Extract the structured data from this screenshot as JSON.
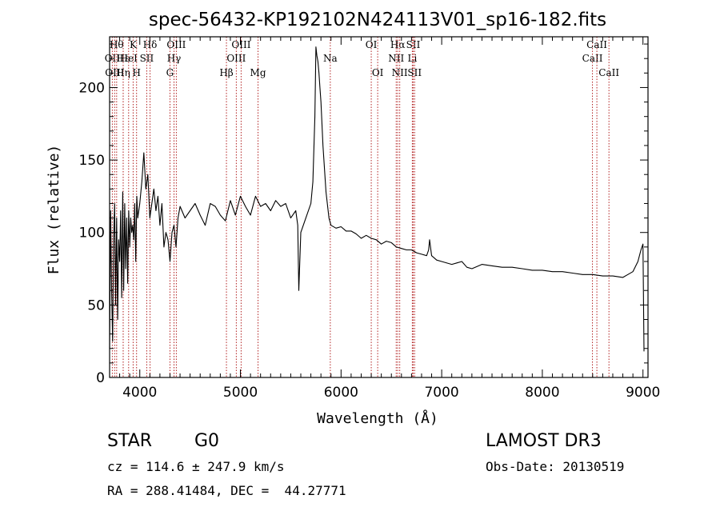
{
  "chart_data": {
    "type": "line",
    "title": "spec-56432-KP192102N424113V01_sp16-182.fits",
    "xlabel": "Wavelength (Å)",
    "ylabel": "Flux (relative)",
    "xlim": [
      3700,
      9050
    ],
    "ylim": [
      0,
      235
    ],
    "xticks": [
      4000,
      5000,
      6000,
      7000,
      8000,
      9000
    ],
    "yticks": [
      0,
      50,
      100,
      150,
      200
    ],
    "grid": false,
    "series": [
      {
        "name": "flux",
        "x": [
          3700,
          3710,
          3720,
          3730,
          3740,
          3750,
          3760,
          3770,
          3780,
          3790,
          3800,
          3810,
          3820,
          3830,
          3840,
          3850,
          3860,
          3870,
          3880,
          3890,
          3900,
          3910,
          3920,
          3930,
          3940,
          3950,
          3960,
          3970,
          3980,
          3990,
          4000,
          4020,
          4040,
          4060,
          4080,
          4100,
          4120,
          4140,
          4160,
          4180,
          4200,
          4220,
          4240,
          4260,
          4280,
          4300,
          4320,
          4340,
          4360,
          4380,
          4400,
          4450,
          4500,
          4550,
          4600,
          4650,
          4700,
          4750,
          4800,
          4850,
          4900,
          4950,
          5000,
          5050,
          5100,
          5150,
          5200,
          5250,
          5300,
          5350,
          5400,
          5450,
          5500,
          5550,
          5570,
          5580,
          5600,
          5650,
          5700,
          5720,
          5740,
          5750,
          5760,
          5770,
          5780,
          5790,
          5800,
          5820,
          5850,
          5880,
          5900,
          5950,
          6000,
          6050,
          6100,
          6150,
          6200,
          6250,
          6300,
          6350,
          6400,
          6450,
          6500,
          6550,
          6600,
          6650,
          6700,
          6750,
          6800,
          6850,
          6870,
          6880,
          6900,
          6950,
          7000,
          7100,
          7150,
          7200,
          7250,
          7300,
          7400,
          7500,
          7600,
          7700,
          7800,
          7900,
          8000,
          8100,
          8200,
          8300,
          8400,
          8500,
          8600,
          8700,
          8800,
          8850,
          8900,
          8950,
          8980,
          9000,
          9010
        ],
        "values": [
          20,
          115,
          60,
          25,
          95,
          120,
          50,
          110,
          40,
          95,
          80,
          115,
          55,
          128,
          60,
          120,
          75,
          110,
          65,
          115,
          90,
          110,
          100,
          105,
          95,
          120,
          80,
          125,
          110,
          115,
          120,
          135,
          155,
          130,
          140,
          110,
          120,
          130,
          115,
          125,
          105,
          120,
          90,
          100,
          95,
          80,
          100,
          105,
          90,
          110,
          118,
          110,
          115,
          120,
          112,
          105,
          120,
          118,
          112,
          108,
          122,
          112,
          125,
          118,
          112,
          125,
          118,
          120,
          115,
          122,
          118,
          120,
          110,
          115,
          105,
          60,
          100,
          110,
          120,
          135,
          180,
          228,
          222,
          218,
          210,
          200,
          190,
          160,
          128,
          110,
          105,
          103,
          104,
          101,
          101,
          99,
          96,
          98,
          96,
          95,
          92,
          94,
          93,
          90,
          89,
          88,
          88,
          86,
          85,
          84,
          88,
          95,
          84,
          81,
          80,
          78,
          79,
          80,
          76,
          75,
          78,
          77,
          76,
          76,
          75,
          74,
          74,
          73,
          73,
          72,
          71,
          71,
          70,
          70,
          69,
          71,
          73,
          80,
          88,
          92,
          18
        ],
        "color": "#000000"
      }
    ],
    "lines": [
      {
        "wl": 3727,
        "label": "OII",
        "row": 1
      },
      {
        "wl": 3750,
        "label": "OIII",
        "row": 2
      },
      {
        "wl": 3770,
        "label": "Hθ",
        "row": 0
      },
      {
        "wl": 3835,
        "label": "Hε",
        "row": 1
      },
      {
        "wl": 3835,
        "label": "Hη",
        "row": 2
      },
      {
        "wl": 3889,
        "label": "HeI",
        "row": 1
      },
      {
        "wl": 3934,
        "label": "K",
        "row": 0
      },
      {
        "wl": 3968,
        "label": "H",
        "row": 2
      },
      {
        "wl": 4069,
        "label": "SII",
        "row": 1
      },
      {
        "wl": 4102,
        "label": "Hδ",
        "row": 0
      },
      {
        "wl": 4300,
        "label": "G",
        "row": 2
      },
      {
        "wl": 4340,
        "label": "Hγ",
        "row": 1
      },
      {
        "wl": 4363,
        "label": "OIII",
        "row": 0
      },
      {
        "wl": 4861,
        "label": "Hβ",
        "row": 2
      },
      {
        "wl": 4959,
        "label": "OIII",
        "row": 1
      },
      {
        "wl": 5007,
        "label": "OIII",
        "row": 0
      },
      {
        "wl": 5175,
        "label": "Mg",
        "row": 2
      },
      {
        "wl": 5893,
        "label": "Na",
        "row": 1
      },
      {
        "wl": 6300,
        "label": "OI",
        "row": 0
      },
      {
        "wl": 6364,
        "label": "OI",
        "row": 2
      },
      {
        "wl": 6548,
        "label": "NII",
        "row": 1
      },
      {
        "wl": 6563,
        "label": "Hα",
        "row": 0
      },
      {
        "wl": 6583,
        "label": "NII",
        "row": 2
      },
      {
        "wl": 6708,
        "label": "Li",
        "row": 1
      },
      {
        "wl": 6717,
        "label": "SII",
        "row": 0
      },
      {
        "wl": 6731,
        "label": "SII",
        "row": 2
      },
      {
        "wl": 8498,
        "label": "CaII",
        "row": 1
      },
      {
        "wl": 8542,
        "label": "CaII",
        "row": 0
      },
      {
        "wl": 8662,
        "label": "CaII",
        "row": 2
      }
    ]
  },
  "info": {
    "class": "STAR",
    "subclass": "G0",
    "survey": "LAMOST DR3",
    "cz": "cz = 114.6 ± 247.9 km/s",
    "obs_date": "Obs-Date: 20130519",
    "radec": "RA = 288.41484, DEC =  44.27771"
  }
}
